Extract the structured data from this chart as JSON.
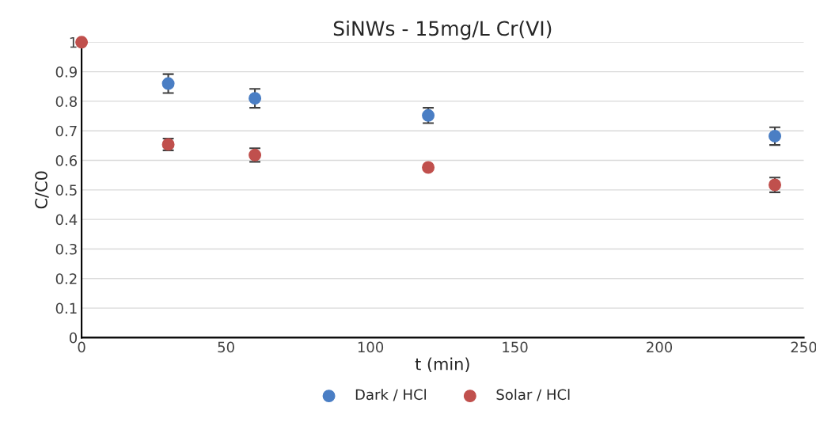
{
  "chart_data": {
    "type": "scatter",
    "title": "SiNWs - 15mg/L Cr(VI)",
    "xlabel": "t (min)",
    "ylabel": "C/C0",
    "xlim": [
      0,
      250
    ],
    "xticks": [
      0,
      50,
      100,
      150,
      200,
      250
    ],
    "ylim": [
      0,
      1
    ],
    "yticks": [
      0,
      0.1,
      0.2,
      0.3,
      0.4,
      0.5,
      0.6,
      0.7,
      0.8,
      0.9,
      1
    ],
    "grid": "y",
    "legend": "bottom",
    "marker": "circle",
    "series": [
      {
        "name": "Dark / HCl",
        "color": "#4a7ec4",
        "x": [
          30,
          60,
          120,
          240
        ],
        "values": [
          0.86,
          0.81,
          0.752,
          0.682
        ],
        "errors": [
          0.032,
          0.032,
          0.026,
          0.03
        ]
      },
      {
        "name": "Solar / HCl",
        "color": "#c0504d",
        "x": [
          0,
          30,
          60,
          120,
          240
        ],
        "values": [
          1,
          0.654,
          0.618,
          0.576,
          0.517
        ],
        "errors": [
          null,
          0.02,
          0.023,
          null,
          0.025
        ]
      }
    ]
  }
}
